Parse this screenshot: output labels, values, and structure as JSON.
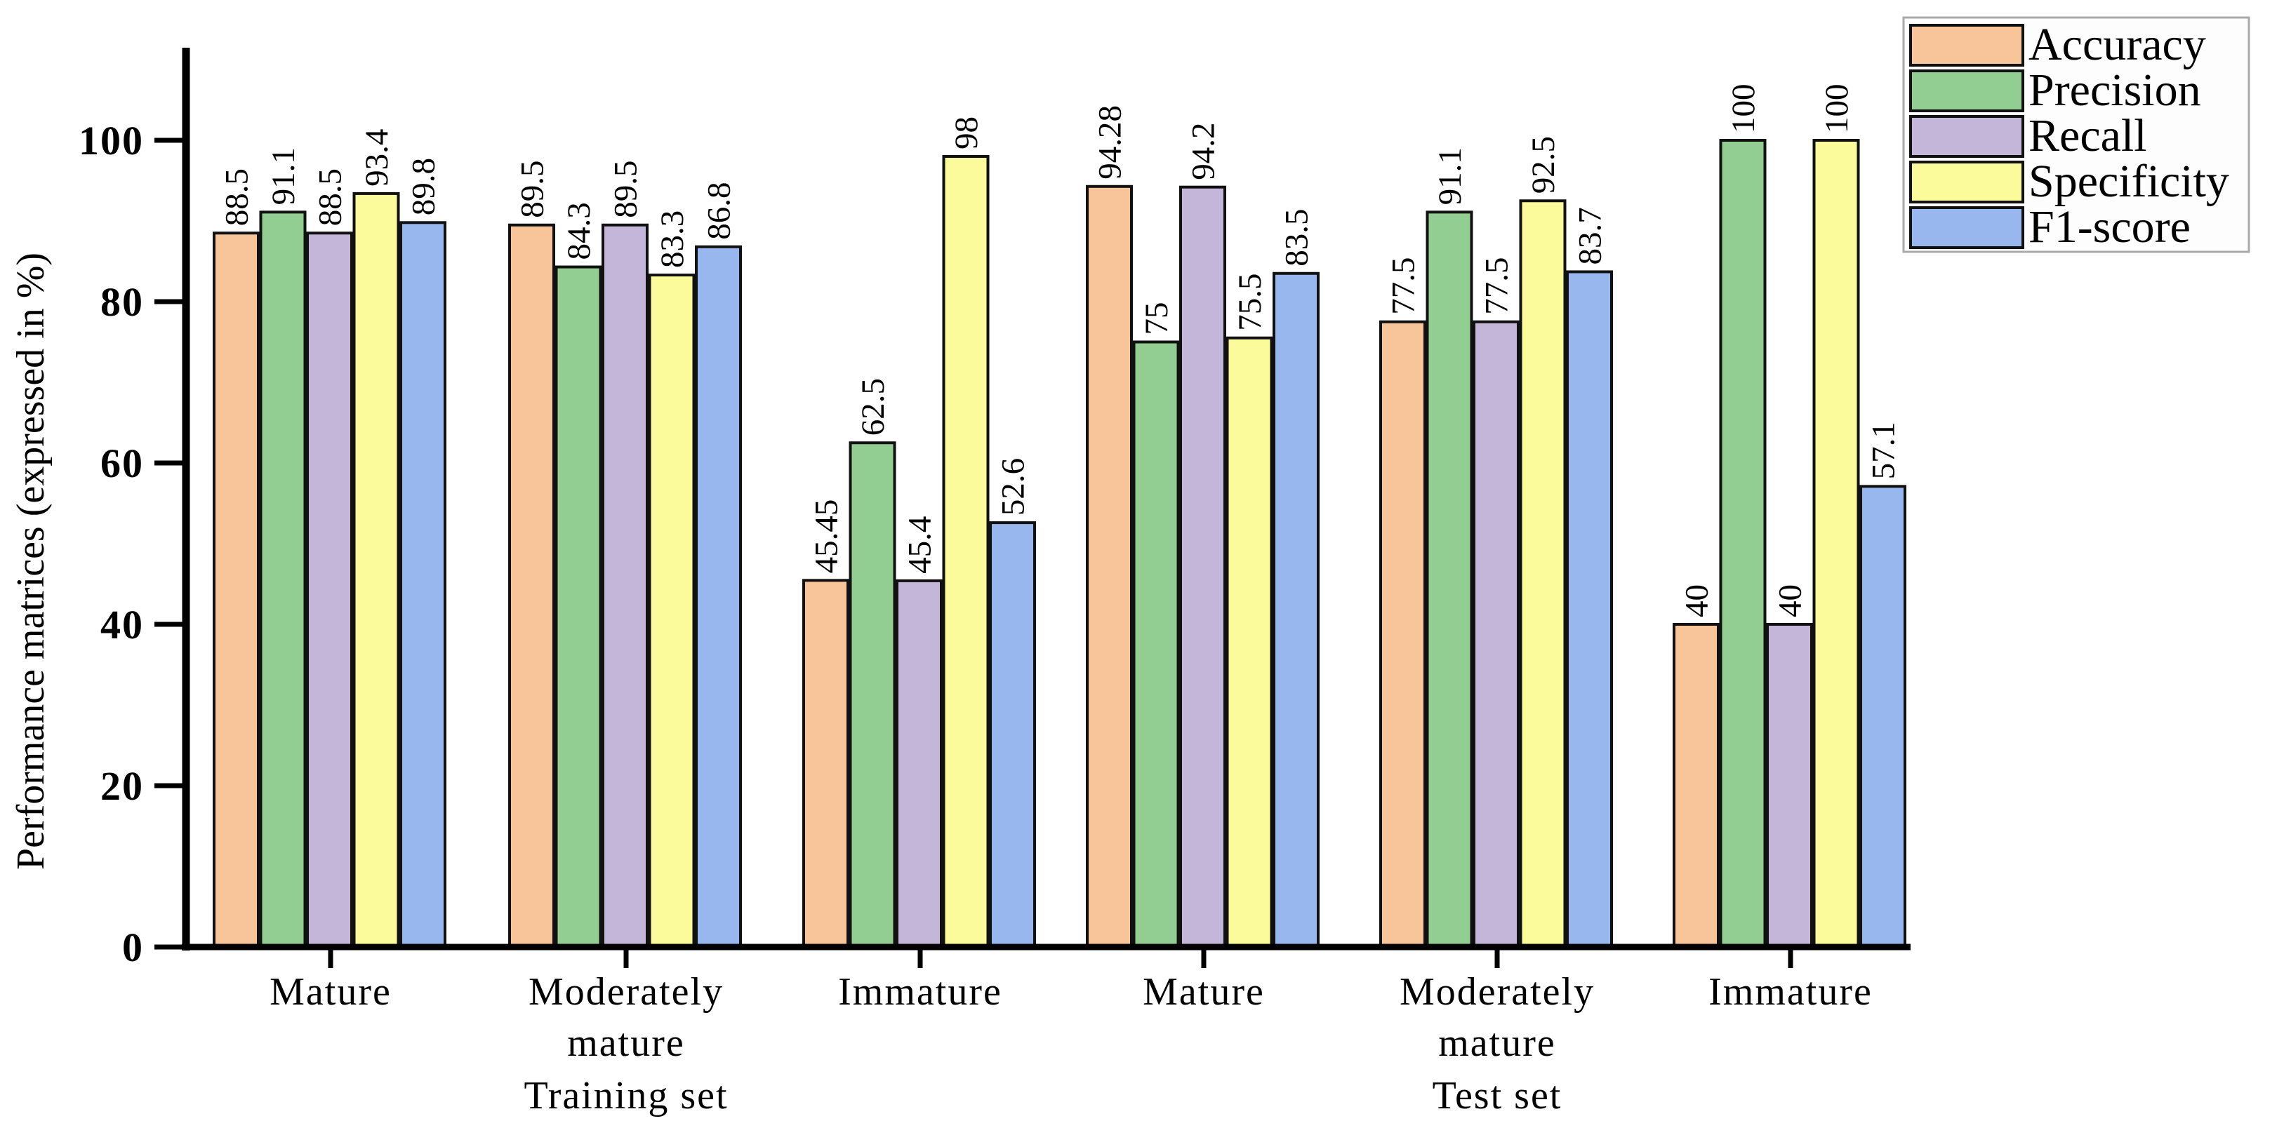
{
  "figure": {
    "background": "#ffffff"
  },
  "chart_data": {
    "type": "bar",
    "title": "",
    "ylabel": "Performance matrices (expressed in %)",
    "xlabel": "",
    "ylim": [
      0,
      111
    ],
    "yticks": [
      0,
      20,
      40,
      60,
      80,
      100
    ],
    "grid": false,
    "legend_position": "top-right",
    "legend_labels": [
      "Accuracy",
      "Precision",
      "Recall",
      "Specificity",
      "F1-score"
    ],
    "categories": [
      "Mature",
      "Moderately mature",
      "Immature",
      "Mature",
      "Moderately mature",
      "Immature"
    ],
    "category_label_lines": [
      [
        "Mature"
      ],
      [
        "Moderately",
        "mature"
      ],
      [
        "Immature"
      ],
      [
        "Mature"
      ],
      [
        "Moderately",
        "mature"
      ],
      [
        "Immature"
      ]
    ],
    "sections": [
      {
        "label": "Training set",
        "center_category_index": 1
      },
      {
        "label": "Test set",
        "center_category_index": 4
      }
    ],
    "series": [
      {
        "name": "Accuracy",
        "color": "#F8C59B",
        "values": [
          88.5,
          89.5,
          45.45,
          94.28,
          77.5,
          40
        ]
      },
      {
        "name": "Precision",
        "color": "#92CE92",
        "values": [
          91.1,
          84.3,
          62.5,
          75,
          91.1,
          100
        ]
      },
      {
        "name": "Recall",
        "color": "#C4B6D8",
        "values": [
          88.5,
          89.5,
          45.4,
          94.2,
          77.5,
          40
        ]
      },
      {
        "name": "Specificity",
        "color": "#FBFB9B",
        "values": [
          93.4,
          83.3,
          98,
          75.5,
          92.5,
          100
        ]
      },
      {
        "name": "F1-score",
        "color": "#98B7EE",
        "values": [
          89.8,
          86.8,
          52.6,
          83.5,
          83.7,
          57.1
        ]
      }
    ],
    "bar_border_color": "#111111",
    "axis_color": "#000000",
    "legend_border_color": "#a9a9a9"
  }
}
